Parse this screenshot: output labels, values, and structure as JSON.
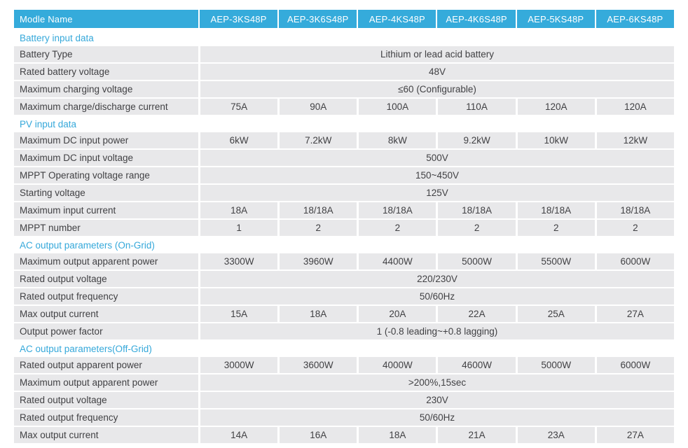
{
  "colors": {
    "header_bg": "#35abdb",
    "header_text": "#ffffff",
    "section_title_text": "#35a8da",
    "row_bg": "#e8e8ea",
    "cell_text": "#414144",
    "page_bg": "#ffffff"
  },
  "header": {
    "corner_label": "Modle Name",
    "models": [
      "AEP-3KS48P",
      "AEP-3K6S48P",
      "AEP-4KS48P",
      "AEP-4K6S48P",
      "AEP-5KS48P",
      "AEP-6KS48P"
    ]
  },
  "sections": [
    {
      "title": "Battery input data",
      "rows": [
        {
          "label": "Battery Type",
          "span": "Lithium or lead acid battery"
        },
        {
          "label": "Rated battery voltage",
          "span": "48V"
        },
        {
          "label": "Maximum charging voltage",
          "span": "≤60 (Configurable)"
        },
        {
          "label": "Maximum charge/discharge current",
          "values": [
            "75A",
            "90A",
            "100A",
            "110A",
            "120A",
            "120A"
          ]
        }
      ]
    },
    {
      "title": "PV input data",
      "rows": [
        {
          "label": "Maximum DC input power",
          "values": [
            "6kW",
            "7.2kW",
            "8kW",
            "9.2kW",
            "10kW",
            "12kW"
          ]
        },
        {
          "label": "Maximum DC input voltage",
          "span": "500V"
        },
        {
          "label": "MPPT Operating voltage range",
          "span": "150~450V"
        },
        {
          "label": "Starting voltage",
          "span": "125V"
        },
        {
          "label": "Maximum input current",
          "values": [
            "18A",
            "18/18A",
            "18/18A",
            "18/18A",
            "18/18A",
            "18/18A"
          ]
        },
        {
          "label": "MPPT number",
          "values": [
            "1",
            "2",
            "2",
            "2",
            "2",
            "2"
          ]
        }
      ]
    },
    {
      "title": "AC output parameters (On-Grid)",
      "rows": [
        {
          "label": "Maximum output apparent power",
          "values": [
            "3300W",
            "3960W",
            "4400W",
            "5000W",
            "5500W",
            "6000W"
          ]
        },
        {
          "label": "Rated output voltage",
          "span": "220/230V"
        },
        {
          "label": "Rated output frequency",
          "span": "50/60Hz"
        },
        {
          "label": "Max output current",
          "values": [
            "15A",
            "18A",
            "20A",
            "22A",
            "25A",
            "27A"
          ]
        },
        {
          "label": "Output power factor",
          "span": "1 (-0.8 leading~+0.8 lagging)"
        }
      ]
    },
    {
      "title": "AC output parameters(Off-Grid)",
      "rows": [
        {
          "label": "Rated output apparent power",
          "values": [
            "3000W",
            "3600W",
            "4000W",
            "4600W",
            "5000W",
            "6000W"
          ]
        },
        {
          "label": "Maximum output apparent power",
          "span": ">200%,15sec"
        },
        {
          "label": "Rated output voltage",
          "span": "230V"
        },
        {
          "label": "Rated output frequency",
          "span": "50/60Hz"
        },
        {
          "label": "Max output current",
          "values": [
            "14A",
            "16A",
            "18A",
            "21A",
            "23A",
            "27A"
          ]
        }
      ]
    }
  ]
}
